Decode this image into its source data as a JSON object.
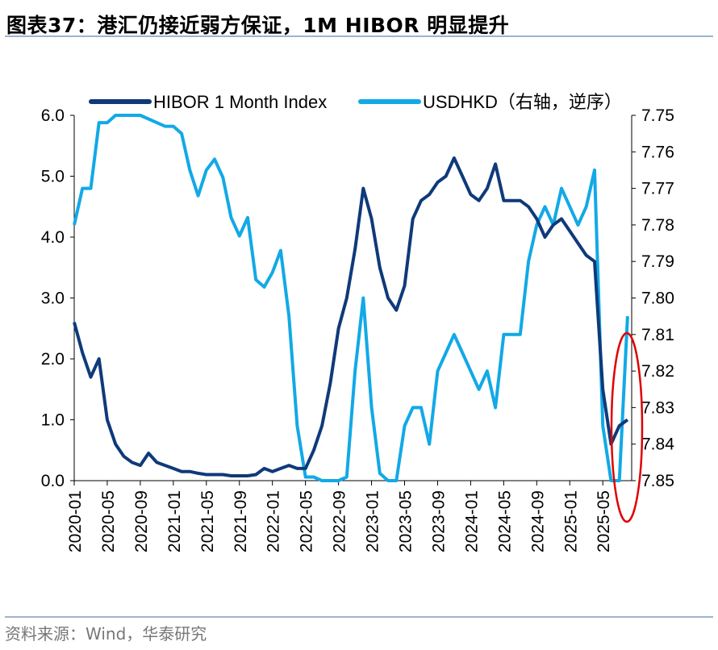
{
  "title": "图表37：港汇仍接近弱方保证，1M HIBOR 明显提升",
  "source": "资料来源：Wind，华泰研究",
  "chart_data": {
    "type": "line",
    "legend_position": "top",
    "grid": false,
    "x_tick_labels": [
      "2020-01",
      "2020-05",
      "2020-09",
      "2021-01",
      "2021-05",
      "2021-09",
      "2022-01",
      "2022-05",
      "2022-09",
      "2023-01",
      "2023-05",
      "2023-09",
      "2024-01",
      "2024-05",
      "2024-09",
      "2025-01",
      "2025-05"
    ],
    "x": [
      "2020-01",
      "2020-02",
      "2020-03",
      "2020-04",
      "2020-05",
      "2020-06",
      "2020-07",
      "2020-08",
      "2020-09",
      "2020-10",
      "2020-11",
      "2020-12",
      "2021-01",
      "2021-02",
      "2021-03",
      "2021-04",
      "2021-05",
      "2021-06",
      "2021-07",
      "2021-08",
      "2021-09",
      "2021-10",
      "2021-11",
      "2021-12",
      "2022-01",
      "2022-02",
      "2022-03",
      "2022-04",
      "2022-05",
      "2022-06",
      "2022-07",
      "2022-08",
      "2022-09",
      "2022-10",
      "2022-11",
      "2022-12",
      "2023-01",
      "2023-02",
      "2023-03",
      "2023-04",
      "2023-05",
      "2023-06",
      "2023-07",
      "2023-08",
      "2023-09",
      "2023-10",
      "2023-11",
      "2023-12",
      "2024-01",
      "2024-02",
      "2024-03",
      "2024-04",
      "2024-05",
      "2024-06",
      "2024-07",
      "2024-08",
      "2024-09",
      "2024-10",
      "2024-11",
      "2024-12",
      "2025-01",
      "2025-02",
      "2025-03",
      "2025-04",
      "2025-05",
      "2025-06",
      "2025-07",
      "2025-08"
    ],
    "left_axis": {
      "ylim": [
        0,
        6
      ],
      "tick_labels": [
        "0.0",
        "1.0",
        "2.0",
        "3.0",
        "4.0",
        "5.0",
        "6.0"
      ]
    },
    "right_axis": {
      "ylim": [
        7.75,
        7.85
      ],
      "inverted": true,
      "tick_labels": [
        "7.75",
        "7.76",
        "7.77",
        "7.78",
        "7.79",
        "7.80",
        "7.81",
        "7.82",
        "7.83",
        "7.84",
        "7.85"
      ]
    },
    "series": [
      {
        "name": "HIBOR 1 Month Index",
        "axis": "left",
        "color": "#0f3a7a",
        "values": [
          2.6,
          2.1,
          1.7,
          2.0,
          1.0,
          0.6,
          0.4,
          0.3,
          0.25,
          0.45,
          0.3,
          0.25,
          0.2,
          0.15,
          0.15,
          0.12,
          0.1,
          0.1,
          0.1,
          0.08,
          0.08,
          0.08,
          0.1,
          0.2,
          0.15,
          0.2,
          0.25,
          0.2,
          0.2,
          0.5,
          0.9,
          1.6,
          2.5,
          3.0,
          3.8,
          4.8,
          4.3,
          3.5,
          3.0,
          2.8,
          3.2,
          4.3,
          4.6,
          4.7,
          4.9,
          5.0,
          5.3,
          5.0,
          4.7,
          4.6,
          4.8,
          5.2,
          4.6,
          4.6,
          4.6,
          4.5,
          4.3,
          4.0,
          4.2,
          4.3,
          4.1,
          3.9,
          3.7,
          3.6,
          1.5,
          0.6,
          0.9,
          1.0
        ]
      },
      {
        "name": "USDHKD（右轴，逆序）",
        "axis": "right",
        "color": "#12a9e6",
        "values": [
          7.78,
          7.77,
          7.77,
          7.752,
          7.752,
          7.75,
          7.75,
          7.75,
          7.75,
          7.751,
          7.752,
          7.753,
          7.753,
          7.755,
          7.765,
          7.772,
          7.765,
          7.762,
          7.767,
          7.778,
          7.783,
          7.778,
          7.795,
          7.797,
          7.793,
          7.787,
          7.805,
          7.835,
          7.849,
          7.849,
          7.85,
          7.85,
          7.85,
          7.849,
          7.82,
          7.8,
          7.83,
          7.848,
          7.85,
          7.85,
          7.835,
          7.83,
          7.83,
          7.84,
          7.82,
          7.815,
          7.81,
          7.815,
          7.82,
          7.825,
          7.82,
          7.83,
          7.81,
          7.81,
          7.81,
          7.79,
          7.78,
          7.775,
          7.78,
          7.77,
          7.775,
          7.78,
          7.775,
          7.765,
          7.835,
          7.85,
          7.85,
          7.805
        ]
      }
    ]
  }
}
